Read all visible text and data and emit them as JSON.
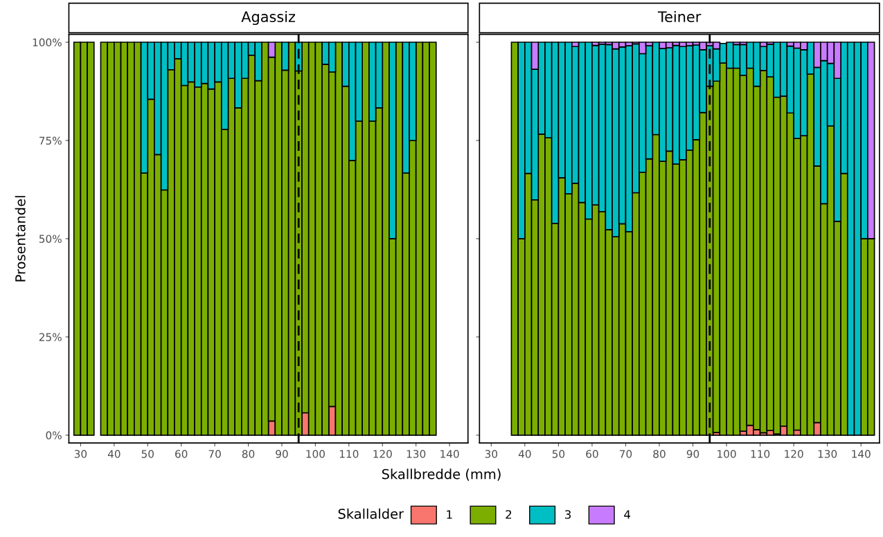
{
  "chart_data": [
    {
      "type": "bar",
      "title": "Agassiz",
      "xlabel": "Skallbredde (mm)",
      "ylabel": "Prosentandel",
      "legend_title": "Skallalder",
      "legend": "bottom",
      "stacked": true,
      "grid": false,
      "x": [
        29,
        31,
        33,
        37,
        39,
        41,
        43,
        45,
        47,
        49,
        51,
        53,
        55,
        57,
        59,
        61,
        63,
        65,
        67,
        69,
        71,
        73,
        75,
        77,
        79,
        81,
        83,
        85,
        87,
        89,
        91,
        93,
        95,
        97,
        99,
        101,
        103,
        105,
        107,
        109,
        111,
        113,
        115,
        117,
        119,
        121,
        123,
        125,
        127,
        129,
        131,
        133,
        135
      ],
      "series": [
        {
          "name": "1",
          "color": "#f8766d",
          "values": [
            0,
            0,
            0,
            0,
            0,
            0,
            0,
            0,
            0,
            0,
            0,
            0,
            0,
            0,
            0,
            0,
            0,
            0,
            0,
            0,
            0,
            0,
            0,
            0,
            0,
            0,
            0,
            0,
            3.6,
            0,
            0,
            0,
            0,
            5.7,
            0,
            0,
            0,
            7.3,
            0,
            0,
            0,
            0,
            0,
            0,
            0,
            0,
            0,
            0,
            0,
            0,
            0,
            0,
            0
          ]
        },
        {
          "name": "2",
          "color": "#7cae00",
          "values": [
            100,
            100,
            100,
            100,
            100,
            100,
            100,
            100,
            100,
            66.7,
            85.5,
            71.4,
            62.4,
            93.0,
            95.8,
            89.0,
            89.9,
            88.6,
            89.5,
            88.1,
            89.9,
            77.8,
            90.8,
            83.3,
            90.8,
            96.7,
            90.2,
            100,
            92.6,
            100,
            92.9,
            100,
            92.7,
            94.3,
            100,
            100,
            94.4,
            85.1,
            100,
            88.8,
            69.9,
            79.9,
            100,
            79.9,
            83.3,
            100,
            50.0,
            100,
            66.7,
            75.0,
            100,
            100,
            100
          ]
        },
        {
          "name": "3",
          "color": "#00bfc4",
          "values": [
            0,
            0,
            0,
            0,
            0,
            0,
            0,
            0,
            0,
            33.3,
            14.5,
            28.6,
            37.6,
            7.0,
            4.2,
            11.0,
            10.1,
            11.4,
            10.5,
            11.9,
            10.1,
            22.2,
            9.2,
            16.7,
            9.2,
            3.3,
            9.8,
            0,
            0,
            0,
            7.1,
            0,
            7.3,
            0,
            0,
            0,
            5.6,
            7.6,
            0,
            11.2,
            30.1,
            20.1,
            0,
            20.1,
            16.7,
            0,
            50.0,
            0,
            33.3,
            25.0,
            0,
            0,
            0
          ]
        },
        {
          "name": "4",
          "color": "#c77cff",
          "values": [
            0,
            0,
            0,
            0,
            0,
            0,
            0,
            0,
            0,
            0,
            0,
            0,
            0,
            0,
            0,
            0,
            0,
            0,
            0,
            0,
            0,
            0,
            0,
            0,
            0,
            0,
            0,
            0,
            3.8,
            0,
            0,
            0,
            0,
            0,
            0,
            0,
            0,
            0,
            0,
            0,
            0,
            0,
            0,
            0,
            0,
            0,
            0,
            0,
            0,
            0,
            0,
            0,
            0
          ]
        }
      ],
      "xlim": [
        26.5,
        145.5
      ],
      "xticks": [
        30,
        40,
        50,
        60,
        70,
        80,
        90,
        100,
        110,
        120,
        130,
        140
      ],
      "ylim": [
        -2,
        102
      ],
      "yticks": [
        {
          "value": 0,
          "label": "0%"
        },
        {
          "value": 25,
          "label": "25%"
        },
        {
          "value": 50,
          "label": "50%"
        },
        {
          "value": 75,
          "label": "75%"
        },
        {
          "value": 100,
          "label": "100%"
        }
      ],
      "ref_lines": [
        {
          "axis": "x",
          "value": 95,
          "color": "#000000",
          "line_style": "dashed"
        }
      ]
    },
    {
      "type": "bar",
      "title": "Teiner",
      "stacked": true,
      "grid": false,
      "tick_labels": "x",
      "x": [
        37,
        39,
        41,
        43,
        45,
        47,
        49,
        51,
        53,
        55,
        57,
        59,
        61,
        63,
        65,
        67,
        69,
        71,
        73,
        75,
        77,
        79,
        81,
        83,
        85,
        87,
        89,
        91,
        93,
        95,
        97,
        99,
        101,
        103,
        105,
        107,
        109,
        111,
        113,
        115,
        117,
        119,
        121,
        123,
        125,
        127,
        129,
        131,
        133,
        135,
        137,
        139,
        141,
        143
      ],
      "series": [
        {
          "name": "1",
          "color": "#f8766d",
          "values": [
            0,
            0,
            0,
            0,
            0,
            0,
            0,
            0,
            0,
            0,
            0,
            0,
            0,
            0,
            0,
            0,
            0,
            0,
            0,
            0,
            0,
            0,
            0,
            0,
            0,
            0,
            0,
            0,
            0,
            0,
            0.7,
            null,
            0,
            0,
            1.0,
            2.5,
            1.4,
            0.6,
            1.2,
            0.3,
            2.3,
            0,
            1.3,
            0,
            0,
            3.2,
            0,
            0,
            0,
            0,
            0,
            0,
            0,
            0
          ]
        },
        {
          "name": "2",
          "color": "#7cae00",
          "values": [
            100,
            50,
            66.6,
            59.9,
            76.6,
            75.7,
            53.9,
            65.5,
            61.4,
            64.1,
            59.2,
            55.0,
            58.6,
            56.9,
            52.3,
            50.5,
            53.8,
            51.8,
            61.7,
            66.9,
            70.3,
            76.5,
            69.7,
            72.3,
            69.0,
            70.1,
            72.5,
            75.2,
            82.1,
            88.8,
            89.4,
            94.7,
            93.4,
            93.4,
            90.6,
            90.9,
            87.4,
            92.2,
            90.0,
            85.7,
            84.0,
            82.0,
            74.2,
            76.2,
            91.9,
            65.3,
            58.9,
            78.7,
            54.4,
            66.6,
            0,
            0,
            50,
            50
          ]
        },
        {
          "name": "3",
          "color": "#00bfc4",
          "values": [
            0,
            50,
            33.4,
            33.2,
            23.4,
            24.3,
            46.1,
            34.5,
            38.6,
            34.8,
            40.8,
            45.0,
            40.6,
            42.6,
            47.1,
            47.8,
            45.0,
            47.3,
            37.9,
            30.2,
            28.8,
            23.5,
            28.7,
            26.3,
            30.2,
            28.8,
            26.6,
            24.1,
            16.0,
            10.3,
            8.2,
            5.0,
            6.6,
            6.0,
            7.8,
            6.6,
            11.2,
            6.1,
            8.3,
            14.0,
            13.7,
            17.0,
            23.0,
            21.9,
            8.1,
            25.1,
            36.4,
            15.9,
            36.4,
            33.4,
            100,
            100,
            50,
            0
          ]
        },
        {
          "name": "4",
          "color": "#c77cff",
          "values": [
            0,
            0,
            0,
            6.9,
            0,
            0,
            0,
            0,
            0,
            1.1,
            0,
            0,
            0.8,
            0.5,
            0.6,
            1.7,
            1.2,
            0.9,
            0.4,
            2.9,
            0.9,
            0,
            1.6,
            1.4,
            0.8,
            1.1,
            0.9,
            0.7,
            1.9,
            0.9,
            1.7,
            0,
            0,
            0.6,
            0.6,
            0,
            0,
            1.1,
            0.5,
            0,
            0,
            1.0,
            1.5,
            1.9,
            0,
            6.4,
            4.7,
            5.4,
            9.2,
            0,
            0,
            0,
            0,
            50
          ]
        }
      ],
      "xlim": [
        26.5,
        145.5
      ],
      "xticks": [
        30,
        40,
        50,
        60,
        70,
        80,
        90,
        100,
        110,
        120,
        130,
        140
      ],
      "ylim": [
        -2,
        102
      ],
      "yticks": [
        {
          "value": 0,
          "label": null
        },
        {
          "value": 25,
          "label": null
        },
        {
          "value": 50,
          "label": null
        },
        {
          "value": 75,
          "label": null
        },
        {
          "value": 100,
          "label": null
        }
      ],
      "ref_lines": [
        {
          "axis": "x",
          "value": 95,
          "color": "#000000",
          "line_style": "dashed"
        }
      ]
    }
  ]
}
